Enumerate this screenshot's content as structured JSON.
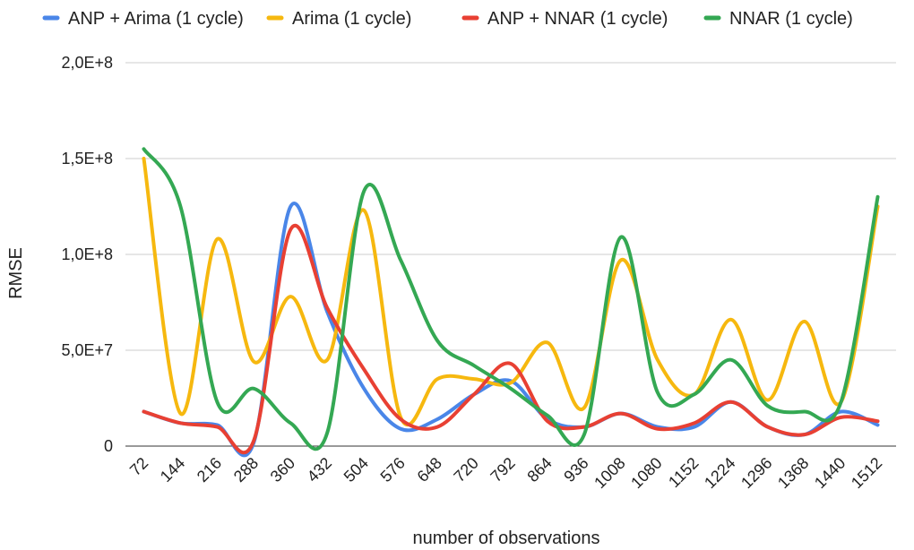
{
  "chart_data": {
    "type": "line",
    "title": "",
    "xlabel": "number of observations",
    "ylabel": "RMSE",
    "ylim": [
      0,
      200000000
    ],
    "yticks": [
      {
        "value": 0,
        "label": "0"
      },
      {
        "value": 50000000,
        "label": "5,0E+7"
      },
      {
        "value": 100000000,
        "label": "1,0E+8"
      },
      {
        "value": 150000000,
        "label": "1,5E+8"
      },
      {
        "value": 200000000,
        "label": "2,0E+8"
      }
    ],
    "grid": true,
    "legend_position": "top",
    "x": [
      "72",
      "144",
      "216",
      "288",
      "360",
      "432",
      "504",
      "576",
      "648",
      "720",
      "792",
      "864",
      "936",
      "1008",
      "1080",
      "1152",
      "1224",
      "1296",
      "1368",
      "1440",
      "1512"
    ],
    "series": [
      {
        "name": "ANP + Arima (1 cycle)",
        "color": "#4a86e8",
        "values": [
          18000000,
          12000000,
          11000000,
          2000000,
          125000000,
          70000000,
          30000000,
          9000000,
          14000000,
          27000000,
          34000000,
          14000000,
          10000000,
          17000000,
          10000000,
          10000000,
          23000000,
          10000000,
          6000000,
          18000000,
          11000000
        ]
      },
      {
        "name": "Arima (1 cycle)",
        "color": "#f6b80f",
        "values": [
          150000000,
          17000000,
          108000000,
          44000000,
          78000000,
          45000000,
          123000000,
          15000000,
          35000000,
          35000000,
          33000000,
          54000000,
          20000000,
          97000000,
          45000000,
          27000000,
          66000000,
          24000000,
          65000000,
          23000000,
          125000000
        ]
      },
      {
        "name": "ANP + NNAR (1 cycle)",
        "color": "#e84033",
        "values": [
          18000000,
          12000000,
          10000000,
          3000000,
          113000000,
          72000000,
          40000000,
          14000000,
          10000000,
          27000000,
          43000000,
          13000000,
          10000000,
          17000000,
          9000000,
          12000000,
          23000000,
          10000000,
          6000000,
          15000000,
          13000000
        ]
      },
      {
        "name": "NNAR (1 cycle)",
        "color": "#34a853",
        "values": [
          155000000,
          125000000,
          23000000,
          30000000,
          12000000,
          7000000,
          133000000,
          97000000,
          55000000,
          42000000,
          30000000,
          16000000,
          6000000,
          109000000,
          28000000,
          27000000,
          45000000,
          21000000,
          18000000,
          23000000,
          130000000
        ]
      }
    ]
  }
}
